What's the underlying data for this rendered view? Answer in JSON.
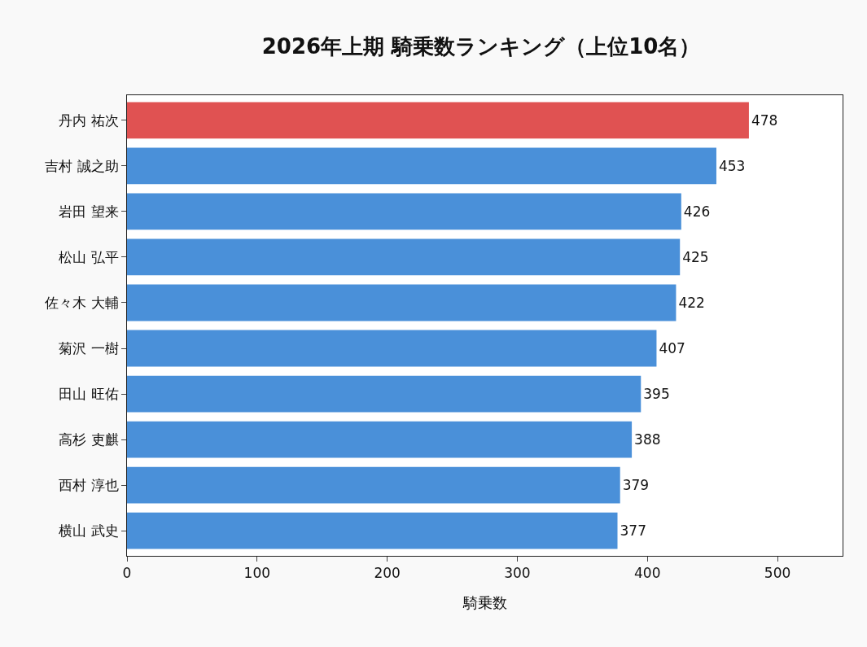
{
  "chart_data": {
    "type": "bar",
    "orientation": "horizontal",
    "title": "2026年上期 騎乗数ランキング（上位10名）",
    "xlabel": "騎乗数",
    "categories": [
      "丹内 祐次",
      "吉村 誠之助",
      "岩田 望来",
      "松山 弘平",
      "佐々木 大輔",
      "菊沢 一樹",
      "田山 旺佑",
      "高杉 吏麒",
      "西村 淳也",
      "横山 武史"
    ],
    "values": [
      478,
      453,
      426,
      425,
      422,
      407,
      395,
      388,
      379,
      377
    ],
    "colors": [
      "#e05252",
      "#4a90d9",
      "#4a90d9",
      "#4a90d9",
      "#4a90d9",
      "#4a90d9",
      "#4a90d9",
      "#4a90d9",
      "#4a90d9",
      "#4a90d9"
    ],
    "xlim": [
      0,
      550
    ],
    "xticks": [
      0,
      100,
      200,
      300,
      400,
      500
    ],
    "data_labels": true,
    "grid": false
  }
}
